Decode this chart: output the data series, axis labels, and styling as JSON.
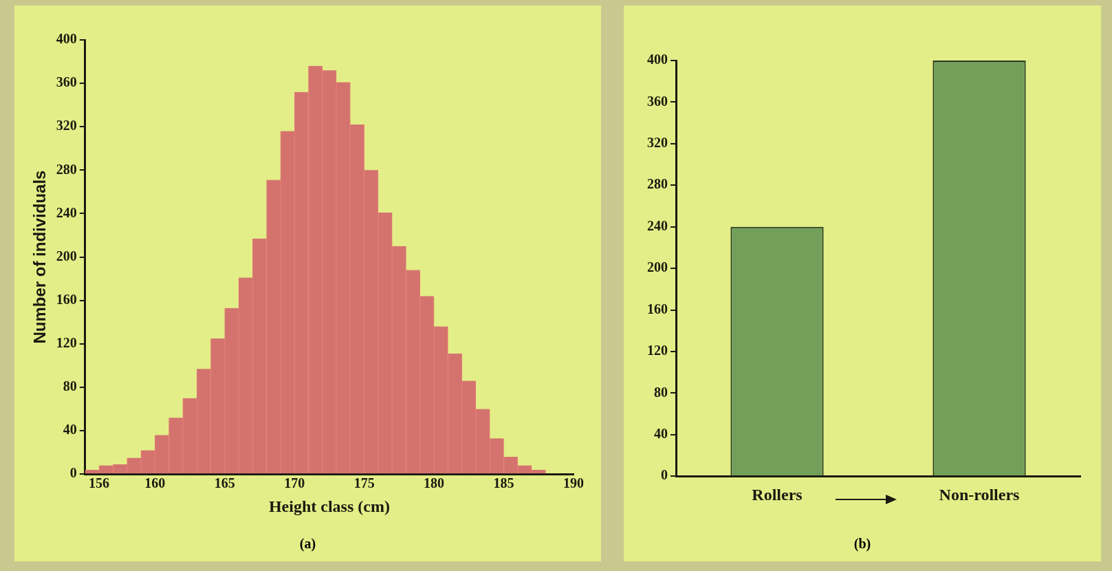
{
  "chart_data": [
    {
      "type": "histogram",
      "xlabel": "Height class (cm)",
      "ylabel": "Number of individuals",
      "annotations": [
        "(a)"
      ],
      "color": "#d4736e",
      "bins": [
        155,
        156,
        157,
        158,
        159,
        160,
        161,
        162,
        163,
        164,
        165,
        166,
        167,
        168,
        169,
        170,
        171,
        172,
        173,
        174,
        175,
        176,
        177,
        178,
        179,
        180,
        181,
        182,
        183,
        184,
        185,
        186,
        187,
        188
      ],
      "values": [
        4,
        8,
        9,
        15,
        22,
        36,
        52,
        70,
        97,
        125,
        153,
        181,
        217,
        271,
        316,
        352,
        376,
        372,
        361,
        322,
        280,
        241,
        210,
        188,
        164,
        136,
        111,
        86,
        60,
        33,
        16,
        8,
        4
      ],
      "xlim": [
        155,
        190
      ],
      "xticks": [
        156,
        160,
        165,
        170,
        175,
        180,
        185,
        190
      ],
      "ylim": [
        0,
        400
      ],
      "yticks": [
        0,
        40,
        80,
        120,
        160,
        200,
        240,
        280,
        320,
        360,
        400
      ],
      "grid": false,
      "legend": false
    },
    {
      "type": "bar",
      "categories": [
        "Rollers",
        "Non-rollers"
      ],
      "values": [
        240,
        400
      ],
      "color": "#72a05a",
      "annotations": [
        "(b)"
      ],
      "ylim": [
        0,
        400
      ],
      "yticks": [
        0,
        40,
        80,
        120,
        160,
        200,
        240,
        280,
        320,
        360,
        400
      ],
      "grid": false,
      "legend": false
    }
  ]
}
